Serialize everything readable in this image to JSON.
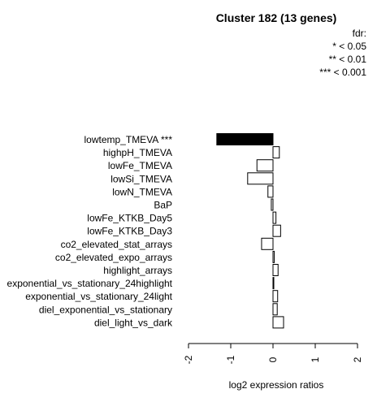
{
  "chart_data": {
    "type": "bar",
    "orientation": "horizontal",
    "title": "Cluster 182 (13 genes)",
    "legend": {
      "title": "fdr:",
      "entries": [
        "* < 0.05",
        "** < 0.01",
        "*** < 0.001"
      ],
      "position": "top-right"
    },
    "categories": [
      "lowtemp_TMEVA ***",
      "highpH_TMEVA",
      "lowFe_TMEVA",
      "lowSi_TMEVA",
      "lowN_TMEVA",
      "BaP",
      "lowFe_KTKB_Day5",
      "lowFe_KTKB_Day3",
      "co2_elevated_stat_arrays",
      "co2_elevated_expo_arrays",
      "highlight_arrays",
      "exponential_vs_stationary_24highlight",
      "exponential_vs_stationary_24light",
      "diel_exponential_vs_stationary",
      "diel_light_vs_dark"
    ],
    "values": [
      -1.33,
      0.15,
      -0.38,
      -0.6,
      -0.12,
      -0.04,
      0.07,
      0.18,
      -0.27,
      0.03,
      0.12,
      0.01,
      0.11,
      0.1,
      0.25
    ],
    "significance": [
      "***",
      "",
      "",
      "",
      "",
      "",
      "",
      "",
      "",
      "",
      "",
      "",
      "",
      "",
      ""
    ],
    "bar_colors": [
      "#000000",
      "#ffffff",
      "#ffffff",
      "#ffffff",
      "#ffffff",
      "#ffffff",
      "#ffffff",
      "#ffffff",
      "#ffffff",
      "#ffffff",
      "#ffffff",
      "#ffffff",
      "#ffffff",
      "#ffffff",
      "#ffffff"
    ],
    "xlim": [
      -2,
      2
    ],
    "xticks": [
      -2,
      -1,
      0,
      1,
      2
    ],
    "xtick_labels": [
      "-2",
      "-1",
      "0",
      "1",
      "2"
    ],
    "xlabel": "log2 expression ratios",
    "grid": false
  }
}
